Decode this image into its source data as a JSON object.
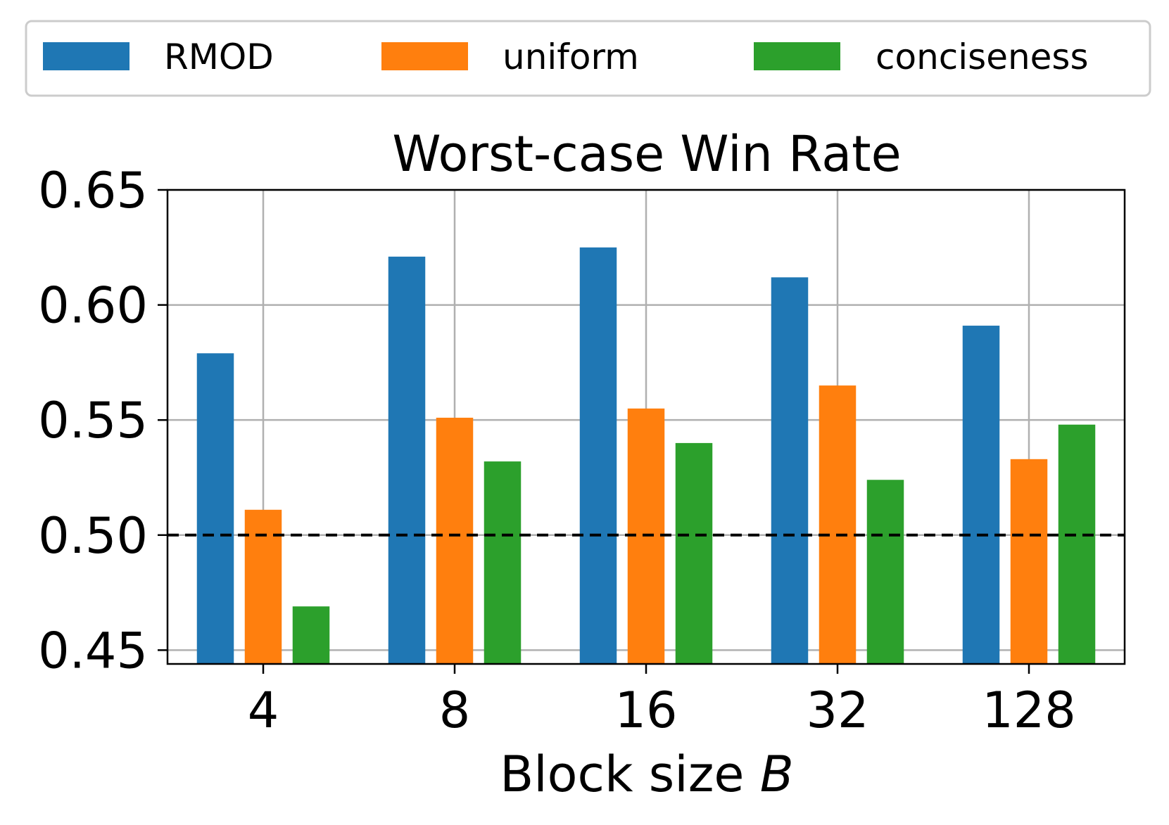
{
  "chart_data": {
    "type": "bar",
    "title": "Worst-case Win Rate",
    "xlabel": "Block size ",
    "xlabel_var": "B",
    "ylabel": "",
    "categories": [
      "4",
      "8",
      "16",
      "32",
      "128"
    ],
    "series": [
      {
        "name": "RMOD",
        "color": "#1f77b4",
        "values": [
          0.579,
          0.621,
          0.625,
          0.612,
          0.591
        ]
      },
      {
        "name": "uniform",
        "color": "#ff7f0e",
        "values": [
          0.511,
          0.551,
          0.555,
          0.565,
          0.533
        ]
      },
      {
        "name": "conciseness",
        "color": "#2ca02c",
        "values": [
          0.469,
          0.532,
          0.54,
          0.524,
          0.548
        ]
      }
    ],
    "ylim": [
      0.444,
      0.65
    ],
    "yticks": [
      0.45,
      0.5,
      0.55,
      0.6,
      0.65
    ],
    "ytick_labels": [
      "0.45",
      "0.50",
      "0.55",
      "0.60",
      "0.65"
    ],
    "reference_line": 0.5,
    "grid": true,
    "legend_position": "top"
  }
}
